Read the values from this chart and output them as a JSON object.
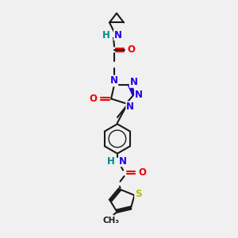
{
  "bg_color": "#f0f0f0",
  "bond_color": "#1a1a1a",
  "N_color": "#2200ee",
  "O_color": "#ee0000",
  "S_color": "#bbbb00",
  "HN_color": "#008888",
  "lw": 1.5,
  "fs": 8.5,
  "fs_small": 7.5,
  "xlim": [
    2.5,
    8.0
  ],
  "ylim": [
    0.3,
    10.2
  ]
}
